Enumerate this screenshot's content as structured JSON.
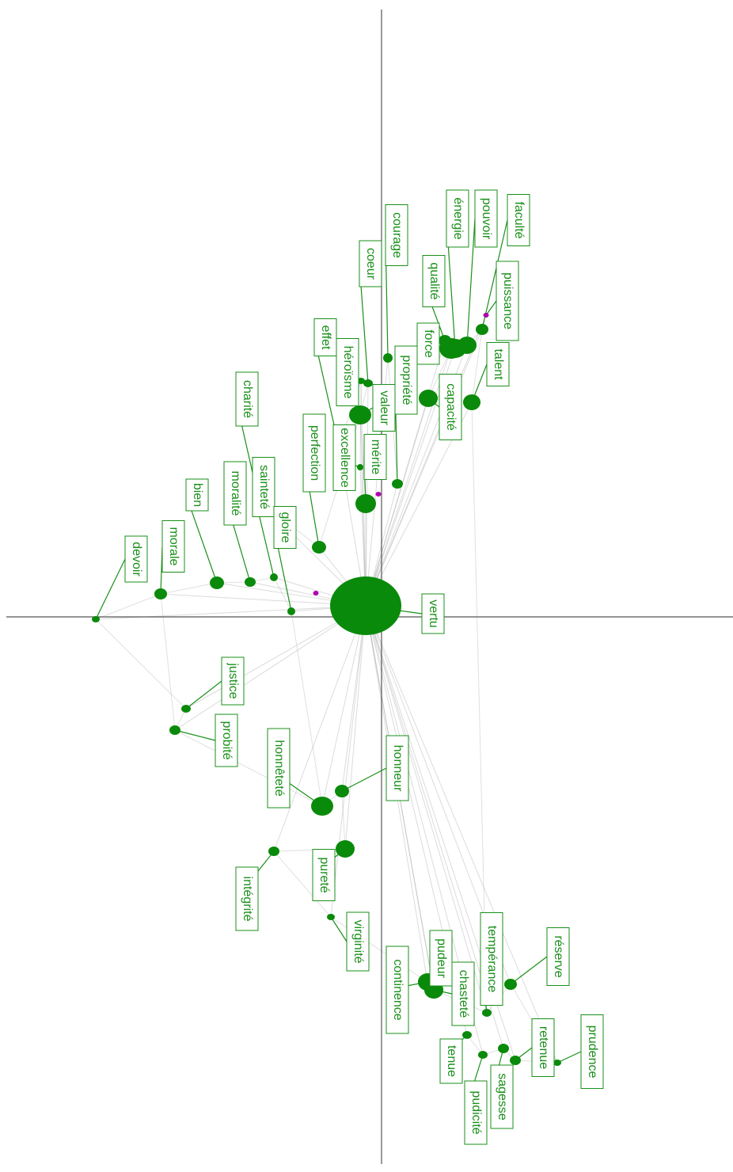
{
  "nodes": [
    {
      "label": "vertu"
    },
    {
      "label": "devoir"
    },
    {
      "label": "morale"
    },
    {
      "label": "bien"
    },
    {
      "label": "moralité"
    },
    {
      "label": "sainteté"
    },
    {
      "label": "gloire"
    },
    {
      "label": "charité"
    },
    {
      "label": "perfection"
    },
    {
      "label": "effet"
    },
    {
      "label": "héroïsme"
    },
    {
      "label": "excellence"
    },
    {
      "label": "coeur"
    },
    {
      "label": "valeur"
    },
    {
      "label": "mérite"
    },
    {
      "label": "courage"
    },
    {
      "label": "propriété"
    },
    {
      "label": "qualité"
    },
    {
      "label": "force"
    },
    {
      "label": "capacité"
    },
    {
      "label": "énergie"
    },
    {
      "label": "pouvoir"
    },
    {
      "label": "faculté"
    },
    {
      "label": "puissance"
    },
    {
      "label": "talent"
    },
    {
      "label": "justice"
    },
    {
      "label": "probité"
    },
    {
      "label": "honnêteté"
    },
    {
      "label": "honneur"
    },
    {
      "label": "pureté"
    },
    {
      "label": "intégrité"
    },
    {
      "label": "virginité"
    },
    {
      "label": "continence"
    },
    {
      "label": "pudeur"
    },
    {
      "label": "chasteté"
    },
    {
      "label": "tempérance"
    },
    {
      "label": "réserve"
    },
    {
      "label": "tenue"
    },
    {
      "label": "pudicité"
    },
    {
      "label": "sagesse"
    },
    {
      "label": "retenue"
    },
    {
      "label": "prudence"
    }
  ]
}
